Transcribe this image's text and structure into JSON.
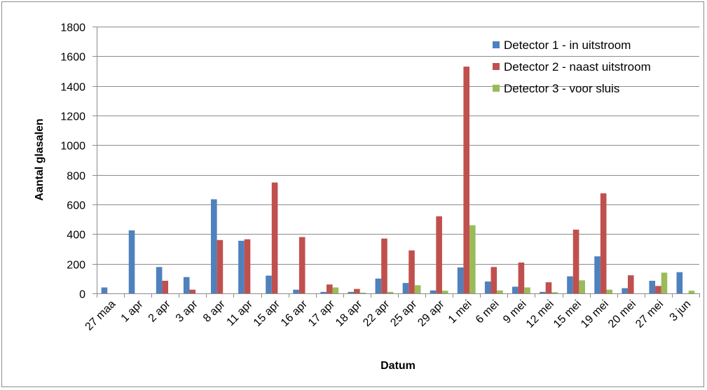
{
  "chart_data": {
    "type": "bar",
    "title": "",
    "xlabel": "Datum",
    "ylabel": "Aantal glasalen",
    "ylim": [
      0,
      1800
    ],
    "yticks": [
      0,
      200,
      400,
      600,
      800,
      1000,
      1200,
      1400,
      1600,
      1800
    ],
    "grid": true,
    "legend_position": "top-right",
    "categories": [
      "27 maa",
      "1 apr",
      "2 apr",
      "3 apr",
      "8 apr",
      "11 apr",
      "15 apr",
      "16 apr",
      "17 apr",
      "18 apr",
      "22 apr",
      "25 apr",
      "29 apr",
      "1 mei",
      "6 mei",
      "9 mei",
      "12 mei",
      "15 mei",
      "19 mei",
      "20 mei",
      "27 mei",
      "3 jun"
    ],
    "series": [
      {
        "name": "Detector 1 - in uitstroom",
        "color": "#4f81bd",
        "values": [
          40,
          425,
          178,
          110,
          635,
          355,
          120,
          25,
          10,
          10,
          100,
          70,
          20,
          175,
          80,
          45,
          10,
          115,
          250,
          35,
          85,
          143
        ]
      },
      {
        "name": "Detector 2 - naast uitstroom",
        "color": "#c0504d",
        "values": [
          0,
          0,
          85,
          25,
          360,
          365,
          748,
          380,
          60,
          30,
          370,
          290,
          520,
          1530,
          178,
          208,
          75,
          430,
          675,
          122,
          50,
          0
        ]
      },
      {
        "name": "Detector 3 - voor sluis",
        "color": "#9bbb59",
        "values": [
          0,
          0,
          0,
          0,
          0,
          0,
          0,
          0,
          40,
          5,
          10,
          55,
          18,
          460,
          20,
          40,
          8,
          88,
          25,
          0,
          140,
          18
        ]
      }
    ]
  }
}
